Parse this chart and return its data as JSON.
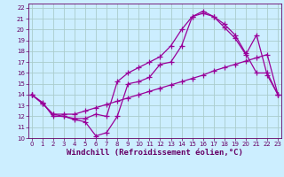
{
  "bg_color": "#cceeff",
  "grid_color": "#aacccc",
  "line_color": "#990099",
  "marker": "+",
  "markersize": 4,
  "linewidth": 0.9,
  "markeredgewidth": 0.9,
  "xlabel": "Windchill (Refroidissement éolien,°C)",
  "xlabel_fontsize": 6.5,
  "tick_fontsize": 5,
  "ylabel_ticks": [
    10,
    11,
    12,
    13,
    14,
    15,
    16,
    17,
    18,
    19,
    20,
    21,
    22
  ],
  "xlabel_ticks": [
    0,
    1,
    2,
    3,
    4,
    5,
    6,
    7,
    8,
    9,
    10,
    11,
    12,
    13,
    14,
    15,
    16,
    17,
    18,
    19,
    20,
    21,
    22,
    23
  ],
  "xlim": [
    -0.3,
    23.3
  ],
  "ylim": [
    10,
    22.4
  ],
  "line1_x": [
    0,
    1,
    2,
    3,
    4,
    5,
    6,
    7,
    8,
    9,
    10,
    11,
    12,
    13,
    14,
    15,
    16,
    17,
    18,
    19,
    20,
    21,
    22,
    23
  ],
  "line1_y": [
    14.0,
    13.3,
    12.0,
    12.0,
    11.7,
    11.5,
    10.2,
    10.5,
    12.0,
    15.0,
    15.2,
    15.6,
    16.8,
    17.0,
    18.5,
    21.2,
    21.7,
    21.2,
    20.2,
    19.2,
    17.7,
    19.5,
    15.8,
    14.0
  ],
  "line2_x": [
    0,
    1,
    2,
    3,
    4,
    5,
    6,
    7,
    8,
    9,
    10,
    11,
    12,
    13,
    14,
    15,
    16,
    17,
    18,
    19,
    20,
    21,
    22,
    23
  ],
  "line2_y": [
    14.0,
    13.2,
    12.2,
    12.2,
    12.2,
    12.5,
    12.8,
    13.1,
    13.4,
    13.7,
    14.0,
    14.3,
    14.6,
    14.9,
    15.2,
    15.5,
    15.8,
    16.2,
    16.5,
    16.8,
    17.1,
    17.4,
    17.7,
    14.0
  ],
  "line3_x": [
    0,
    1,
    2,
    3,
    4,
    5,
    6,
    7,
    8,
    9,
    10,
    11,
    12,
    13,
    14,
    15,
    16,
    17,
    18,
    19,
    20,
    21,
    22,
    23
  ],
  "line3_y": [
    14.0,
    13.2,
    12.2,
    12.0,
    11.8,
    11.8,
    12.2,
    12.0,
    15.2,
    16.0,
    16.5,
    17.0,
    17.5,
    18.5,
    20.0,
    21.2,
    21.5,
    21.2,
    20.5,
    19.5,
    17.8,
    16.0,
    16.0,
    14.0
  ]
}
